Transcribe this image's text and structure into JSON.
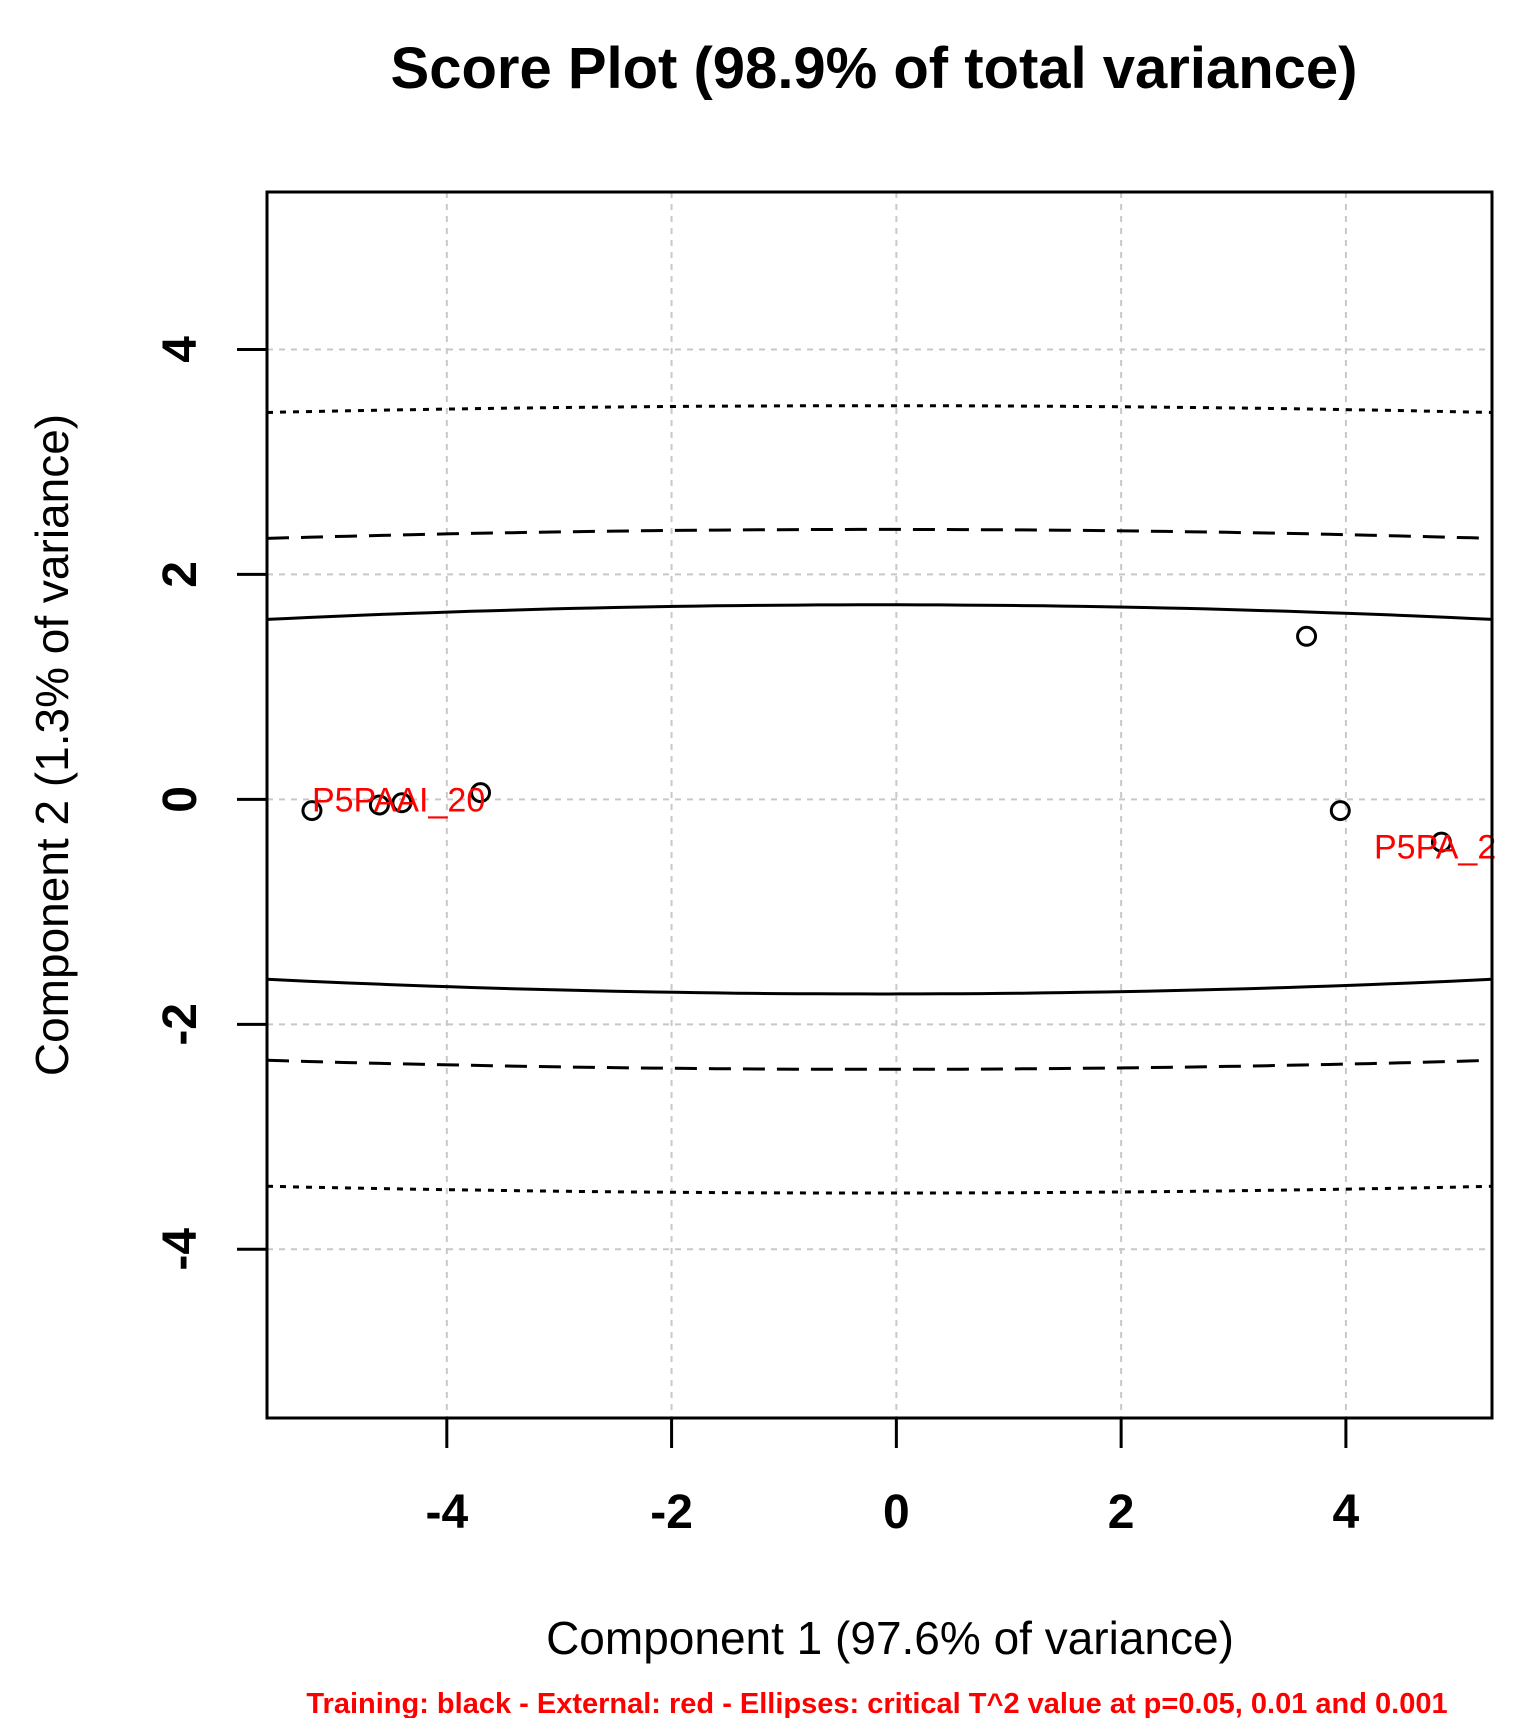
{
  "chart_data": {
    "type": "scatter",
    "title": "Score Plot (98.9% of total variance)",
    "xlabel": "Component 1 (97.6% of variance)",
    "ylabel": "Component 2 (1.3% of variance)",
    "footnote": "Training: black - External: red - Ellipses: critical T^2 value at p=0.05, 0.01 and 0.001",
    "xlim": [
      -5.6,
      5.3
    ],
    "ylim": [
      -5.5,
      5.4
    ],
    "xticks": [
      -4,
      -2,
      0,
      2,
      4
    ],
    "yticks": [
      -4,
      -2,
      0,
      2,
      4
    ],
    "grid": true,
    "colors": {
      "training": "#000000",
      "external": "#ff0000",
      "grid": "#c8c8c8"
    },
    "training_points": [
      {
        "x": -5.2,
        "y": -0.1
      },
      {
        "x": -4.6,
        "y": -0.05
      },
      {
        "x": -4.4,
        "y": -0.03
      },
      {
        "x": -3.7,
        "y": 0.06
      },
      {
        "x": 3.65,
        "y": 1.45
      },
      {
        "x": 3.95,
        "y": -0.1
      },
      {
        "x": 4.85,
        "y": -0.38
      }
    ],
    "external_labels": [
      {
        "text": "P5PAAI_20",
        "x": -5.2,
        "y": 0.0,
        "anchor": "start"
      },
      {
        "text": "P5PA_2",
        "x": 4.25,
        "y": -0.42,
        "anchor": "start"
      }
    ],
    "ellipses": [
      {
        "p": 0.05,
        "style": "solid",
        "center_half_height": 1.73,
        "edge_half_height": 1.6
      },
      {
        "p": 0.01,
        "style": "dashed",
        "center_half_height": 2.4,
        "edge_half_height": 2.32
      },
      {
        "p": 0.001,
        "style": "dotted",
        "center_half_height": 3.5,
        "edge_half_height": 3.44
      }
    ]
  }
}
